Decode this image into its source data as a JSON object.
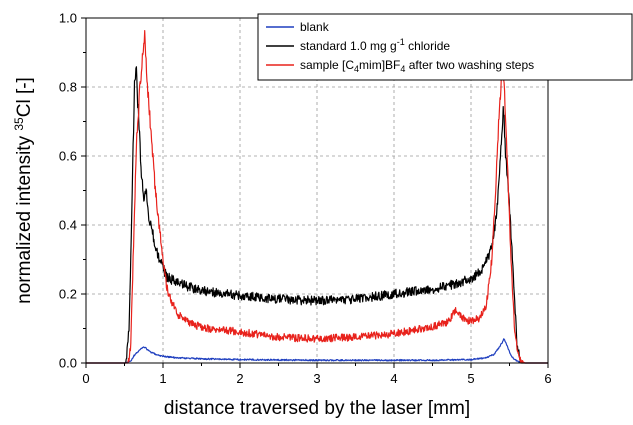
{
  "chart_data": {
    "type": "line",
    "title": "",
    "xlabel": "distance traversed by the laser [mm]",
    "ylabel": {
      "prefix": "normalized intensity ",
      "superscript": "35",
      "suffix": "Cl [-]"
    },
    "xlim": [
      0,
      6
    ],
    "ylim": [
      0,
      1.0
    ],
    "x_ticks": [
      "0",
      "1",
      "2",
      "3",
      "4",
      "5",
      "6"
    ],
    "y_ticks": [
      "0.0",
      "0.2",
      "0.4",
      "0.6",
      "0.8",
      "1.0"
    ],
    "grid": true,
    "legend_position": "top-right",
    "series": [
      {
        "name": "blank",
        "color": "#1f3fbf",
        "points": [
          [
            0,
            0
          ],
          [
            0.5,
            0
          ],
          [
            0.58,
            0.005
          ],
          [
            0.62,
            0.02
          ],
          [
            0.66,
            0.03
          ],
          [
            0.72,
            0.042
          ],
          [
            0.75,
            0.048
          ],
          [
            0.8,
            0.038
          ],
          [
            0.85,
            0.03
          ],
          [
            0.95,
            0.022
          ],
          [
            1.05,
            0.018
          ],
          [
            1.2,
            0.015
          ],
          [
            1.5,
            0.012
          ],
          [
            2,
            0.01
          ],
          [
            3,
            0.008
          ],
          [
            4,
            0.008
          ],
          [
            4.5,
            0.008
          ],
          [
            5,
            0.01
          ],
          [
            5.2,
            0.015
          ],
          [
            5.3,
            0.025
          ],
          [
            5.38,
            0.05
          ],
          [
            5.43,
            0.07
          ],
          [
            5.47,
            0.05
          ],
          [
            5.52,
            0.02
          ],
          [
            5.6,
            0.005
          ],
          [
            5.7,
            0
          ],
          [
            6,
            0
          ]
        ]
      },
      {
        "name": {
          "prefix": "standard 1.0 mg g",
          "superscript": "-1",
          "suffix": " chloride"
        },
        "color": "#000000",
        "points": [
          [
            0,
            0
          ],
          [
            0.52,
            0
          ],
          [
            0.56,
            0.1
          ],
          [
            0.6,
            0.5
          ],
          [
            0.63,
            0.8
          ],
          [
            0.65,
            0.87
          ],
          [
            0.68,
            0.72
          ],
          [
            0.72,
            0.55
          ],
          [
            0.75,
            0.48
          ],
          [
            0.78,
            0.5
          ],
          [
            0.82,
            0.42
          ],
          [
            0.9,
            0.34
          ],
          [
            0.95,
            0.3
          ],
          [
            1.05,
            0.25
          ],
          [
            1.2,
            0.23
          ],
          [
            1.5,
            0.21
          ],
          [
            2,
            0.195
          ],
          [
            2.5,
            0.185
          ],
          [
            3,
            0.18
          ],
          [
            3.5,
            0.185
          ],
          [
            4,
            0.2
          ],
          [
            4.5,
            0.215
          ],
          [
            4.8,
            0.23
          ],
          [
            5,
            0.245
          ],
          [
            5.15,
            0.27
          ],
          [
            5.25,
            0.32
          ],
          [
            5.33,
            0.42
          ],
          [
            5.38,
            0.58
          ],
          [
            5.42,
            0.75
          ],
          [
            5.45,
            0.6
          ],
          [
            5.5,
            0.45
          ],
          [
            5.55,
            0.25
          ],
          [
            5.6,
            0.05
          ],
          [
            5.65,
            0
          ],
          [
            6,
            0
          ]
        ]
      },
      {
        "name": {
          "prefix": "sample [C",
          "subscript1": "4",
          "middle": "mim]BF",
          "subscript2": "4",
          "suffix": " after two washing steps"
        },
        "color": "#e8221c",
        "points": [
          [
            0,
            0
          ],
          [
            0.55,
            0
          ],
          [
            0.58,
            0.05
          ],
          [
            0.6,
            0.2
          ],
          [
            0.63,
            0.45
          ],
          [
            0.66,
            0.65
          ],
          [
            0.7,
            0.8
          ],
          [
            0.74,
            0.9
          ],
          [
            0.76,
            0.95
          ],
          [
            0.8,
            0.8
          ],
          [
            0.85,
            0.65
          ],
          [
            0.9,
            0.5
          ],
          [
            0.95,
            0.4
          ],
          [
            1,
            0.3
          ],
          [
            1.05,
            0.22
          ],
          [
            1.1,
            0.18
          ],
          [
            1.2,
            0.14
          ],
          [
            1.4,
            0.11
          ],
          [
            1.6,
            0.1
          ],
          [
            2,
            0.09
          ],
          [
            2.5,
            0.075
          ],
          [
            3,
            0.07
          ],
          [
            3.5,
            0.075
          ],
          [
            4,
            0.085
          ],
          [
            4.5,
            0.105
          ],
          [
            4.7,
            0.12
          ],
          [
            4.8,
            0.15
          ],
          [
            4.9,
            0.13
          ],
          [
            5,
            0.12
          ],
          [
            5.1,
            0.13
          ],
          [
            5.2,
            0.17
          ],
          [
            5.27,
            0.3
          ],
          [
            5.32,
            0.5
          ],
          [
            5.36,
            0.7
          ],
          [
            5.4,
            0.85
          ],
          [
            5.43,
            0.82
          ],
          [
            5.47,
            0.6
          ],
          [
            5.52,
            0.3
          ],
          [
            5.57,
            0.08
          ],
          [
            5.63,
            0.01
          ],
          [
            5.7,
            0
          ],
          [
            6,
            0
          ]
        ]
      }
    ]
  }
}
